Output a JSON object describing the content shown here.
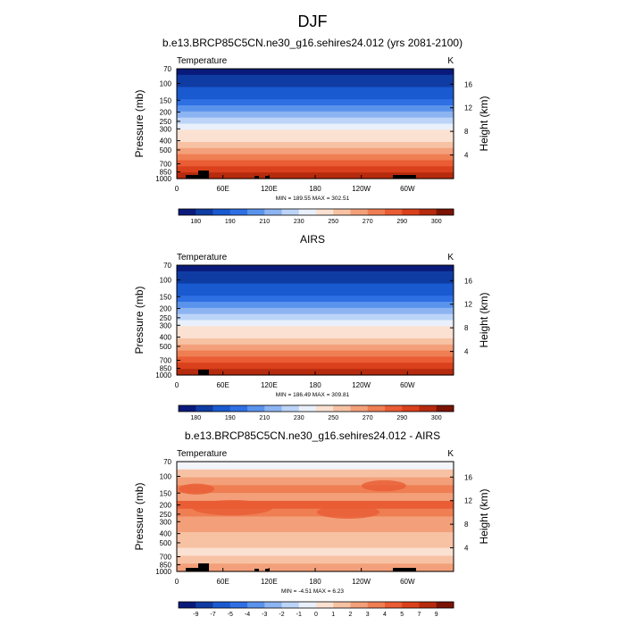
{
  "figure": {
    "title": "DJF"
  },
  "colors": {
    "cold_palette": [
      "#0a1a7a",
      "#0f3ca3",
      "#1a5ad0",
      "#2e6fe3",
      "#5a93ec",
      "#8db4f2",
      "#bcd4f7",
      "#e9f0fb"
    ],
    "warm_palette": [
      "#fbe1d1",
      "#f7c2a4",
      "#f3a07a",
      "#ef7e53",
      "#e95c34",
      "#d9401b",
      "#b62a0e",
      "#7a1303"
    ],
    "terrain": "#000000"
  },
  "chart_data": [
    {
      "type": "heatmap",
      "title": "b.e13.BRCP85C5CN.ne30_g16.sehires24.012 (yrs 2081-2100)",
      "left_label": "Temperature",
      "right_label": "K",
      "ylabel": "Pressure (mb)",
      "y2label": "Height (km)",
      "xticks": [
        "0",
        "60E",
        "120E",
        "180",
        "120W",
        "60W"
      ],
      "yticks": [
        "70",
        "100",
        "150",
        "200",
        "250",
        "300",
        "400",
        "500",
        "700",
        "850",
        "1000"
      ],
      "y2ticks": [
        "16",
        "12",
        "8",
        "4"
      ],
      "stats": "MIN = 189.55  MAX = 302.51",
      "colorbar": [
        "180",
        "190",
        "210",
        "230",
        "250",
        "270",
        "290",
        "300"
      ]
    },
    {
      "type": "heatmap",
      "title": "AIRS",
      "left_label": "Temperature",
      "right_label": "K",
      "ylabel": "Pressure (mb)",
      "y2label": "Height (km)",
      "xticks": [
        "0",
        "60E",
        "120E",
        "180",
        "120W",
        "60W"
      ],
      "yticks": [
        "70",
        "100",
        "150",
        "200",
        "250",
        "300",
        "400",
        "500",
        "700",
        "850",
        "1000"
      ],
      "y2ticks": [
        "16",
        "12",
        "8",
        "4"
      ],
      "stats": "MIN = 186.49  MAX = 309.81",
      "colorbar": [
        "180",
        "190",
        "210",
        "230",
        "250",
        "270",
        "290",
        "300"
      ]
    },
    {
      "type": "heatmap",
      "title": "b.e13.BRCP85C5CN.ne30_g16.sehires24.012 - AIRS",
      "left_label": "Temperature",
      "right_label": "K",
      "ylabel": "Pressure (mb)",
      "y2label": "Height (km)",
      "xticks": [
        "0",
        "60E",
        "120E",
        "180",
        "120W",
        "60W"
      ],
      "yticks": [
        "70",
        "100",
        "150",
        "200",
        "250",
        "300",
        "400",
        "500",
        "700",
        "850",
        "1000"
      ],
      "y2ticks": [
        "16",
        "12",
        "8",
        "4"
      ],
      "stats": "MIN = -4.51  MAX =  6.23",
      "colorbar": [
        "-9",
        "-7",
        "-5",
        "-4",
        "-3",
        "-2",
        "-1",
        "0",
        "1",
        "2",
        "3",
        "4",
        "5",
        "7",
        "9"
      ]
    }
  ]
}
